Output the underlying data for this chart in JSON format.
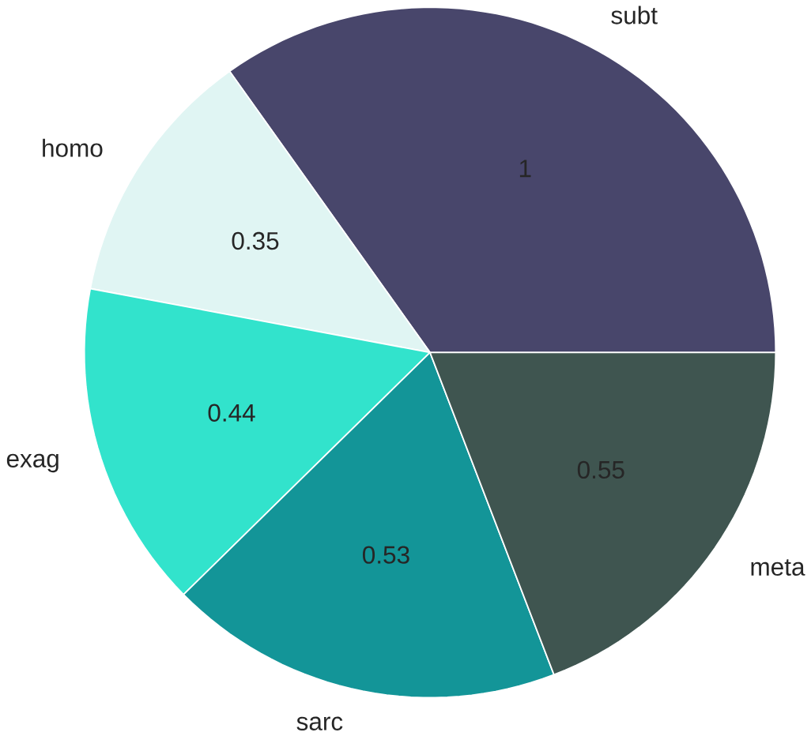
{
  "chart_data": {
    "type": "pie",
    "categories": [
      "subt",
      "homo",
      "exag",
      "sarc",
      "meta"
    ],
    "values": [
      1,
      0.35,
      0.44,
      0.53,
      0.55
    ],
    "colors": [
      "#48466b",
      "#e0f5f3",
      "#32e3cc",
      "#139598",
      "#3f5550"
    ],
    "data_labels": true
  }
}
